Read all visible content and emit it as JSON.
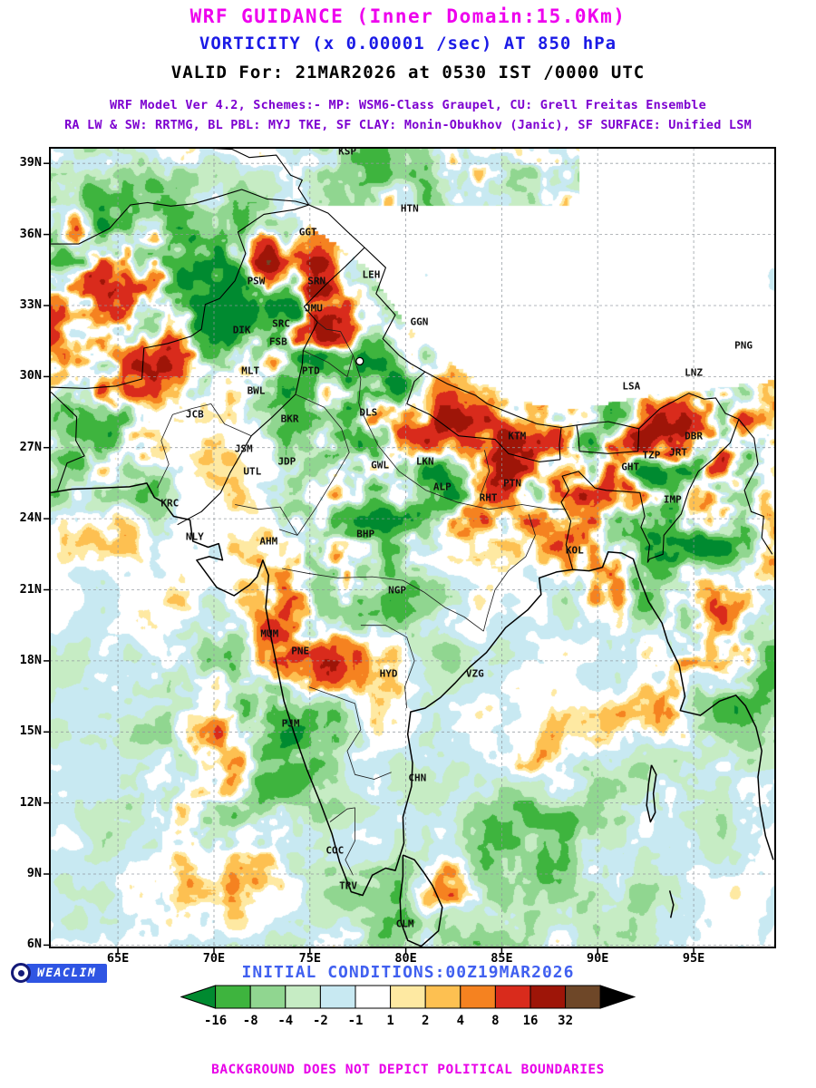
{
  "header": {
    "line1": "WRF GUIDANCE (Inner Domain:15.0Km)",
    "line2": "VORTICITY (x 0.00001 /sec) AT 850 hPa",
    "line3": "VALID For: 21MAR2026 at 0530 IST /0000 UTC",
    "line4": "WRF Model Ver 4.2, Schemes:- MP: WSM6-Class Graupel, CU: Grell Freitas Ensemble",
    "line5": "RA LW & SW: RRTMG, BL PBL: MYJ TKE, SF CLAY: Monin-Obukhov (Janic), SF SURFACE: Unified LSM"
  },
  "palette": {
    "title_magenta": "#ee00ee",
    "subtitle_blue": "#1a1ae6",
    "scheme_purple": "#7d00d0",
    "init_blue": "#4060f0",
    "disclaimer_magenta": "#e800e8",
    "badge_blue": "#2f55e3"
  },
  "map": {
    "lat_labels": [
      "39N",
      "36N",
      "33N",
      "30N",
      "27N",
      "24N",
      "21N",
      "18N",
      "15N",
      "12N",
      "9N",
      "6N"
    ],
    "lon_labels": [
      "65E",
      "70E",
      "75E",
      "80E",
      "85E",
      "90E",
      "95E"
    ],
    "stations": [
      {
        "code": "KSP",
        "lon": 76.95,
        "lat": 39.5
      },
      {
        "code": "HTN",
        "lon": 80.2,
        "lat": 37.1
      },
      {
        "code": "GGT",
        "lon": 74.9,
        "lat": 36.1
      },
      {
        "code": "LEH",
        "lon": 78.2,
        "lat": 34.3
      },
      {
        "code": "SRN",
        "lon": 75.35,
        "lat": 34.05
      },
      {
        "code": "PSW",
        "lon": 72.2,
        "lat": 34.05
      },
      {
        "code": "JMU",
        "lon": 75.2,
        "lat": 32.9
      },
      {
        "code": "SRC",
        "lon": 73.5,
        "lat": 32.25
      },
      {
        "code": "GGN",
        "lon": 80.7,
        "lat": 32.3
      },
      {
        "code": "DIK",
        "lon": 71.45,
        "lat": 31.95
      },
      {
        "code": "FSB",
        "lon": 73.35,
        "lat": 31.45
      },
      {
        "code": "PNG",
        "lon": 97.6,
        "lat": 31.3
      },
      {
        "code": "MLT",
        "lon": 71.9,
        "lat": 30.25
      },
      {
        "code": "PTD",
        "lon": 75.05,
        "lat": 30.25
      },
      {
        "code": "LNZ",
        "lon": 95.0,
        "lat": 30.15
      },
      {
        "code": "LSA",
        "lon": 91.75,
        "lat": 29.6
      },
      {
        "code": "BWL",
        "lon": 72.2,
        "lat": 29.4
      },
      {
        "code": "JCB",
        "lon": 69.0,
        "lat": 28.4
      },
      {
        "code": "DLS",
        "lon": 78.05,
        "lat": 28.5
      },
      {
        "code": "BKR",
        "lon": 73.95,
        "lat": 28.2
      },
      {
        "code": "KTM",
        "lon": 85.8,
        "lat": 27.5
      },
      {
        "code": "JSM",
        "lon": 71.55,
        "lat": 26.95
      },
      {
        "code": "JDP",
        "lon": 73.8,
        "lat": 26.4
      },
      {
        "code": "UTL",
        "lon": 72.0,
        "lat": 26.0
      },
      {
        "code": "GWL",
        "lon": 78.65,
        "lat": 26.25
      },
      {
        "code": "LKN",
        "lon": 81.0,
        "lat": 26.4
      },
      {
        "code": "ALP",
        "lon": 81.9,
        "lat": 25.35
      },
      {
        "code": "PTN",
        "lon": 85.55,
        "lat": 25.5
      },
      {
        "code": "RHT",
        "lon": 84.3,
        "lat": 24.9
      },
      {
        "code": "KRC",
        "lon": 67.7,
        "lat": 24.65
      },
      {
        "code": "NLY",
        "lon": 69.0,
        "lat": 23.25
      },
      {
        "code": "AHM",
        "lon": 72.85,
        "lat": 23.05
      },
      {
        "code": "BHP",
        "lon": 77.9,
        "lat": 23.35
      },
      {
        "code": "KOL",
        "lon": 88.8,
        "lat": 22.65
      },
      {
        "code": "GHT",
        "lon": 91.7,
        "lat": 26.2
      },
      {
        "code": "TZP",
        "lon": 92.8,
        "lat": 26.7
      },
      {
        "code": "JRT",
        "lon": 94.2,
        "lat": 26.8
      },
      {
        "code": "DBR",
        "lon": 95.0,
        "lat": 27.5
      },
      {
        "code": "IMP",
        "lon": 93.9,
        "lat": 24.8
      },
      {
        "code": "NGP",
        "lon": 79.55,
        "lat": 21.0
      },
      {
        "code": "MUM",
        "lon": 72.9,
        "lat": 19.15
      },
      {
        "code": "PNE",
        "lon": 74.5,
        "lat": 18.4
      },
      {
        "code": "HYD",
        "lon": 79.1,
        "lat": 17.45
      },
      {
        "code": "VZG",
        "lon": 83.6,
        "lat": 17.45
      },
      {
        "code": "PJM",
        "lon": 74.0,
        "lat": 15.35
      },
      {
        "code": "CHN",
        "lon": 80.6,
        "lat": 13.05
      },
      {
        "code": "COC",
        "lon": 76.3,
        "lat": 10.0
      },
      {
        "code": "TRV",
        "lon": 77.0,
        "lat": 8.5
      },
      {
        "code": "CLM",
        "lon": 79.95,
        "lat": 6.9
      }
    ],
    "markers": [
      {
        "lon": 77.6,
        "lat": 30.65
      }
    ]
  },
  "footer": {
    "brand": "WEACLIM",
    "initial_conditions": "INITIAL CONDITIONS:00Z19MAR2026",
    "disclaimer": "BACKGROUND DOES NOT DEPICT POLITICAL BOUNDARIES"
  },
  "chart_data": {
    "type": "heatmap",
    "variable": "VORTICITY (x 0.00001 /sec) AT 850 hPa",
    "model": "WRF GUIDANCE (Inner Domain:15.0Km)",
    "valid": "21MAR2026 at 0530 IST /0000 UTC",
    "initial": "00Z19MAR2026",
    "lon_range": [
      61.45,
      99.25
    ],
    "lat_range": [
      5.9,
      39.66
    ],
    "lat_ticks": [
      6,
      9,
      12,
      15,
      18,
      21,
      24,
      27,
      30,
      33,
      36,
      39
    ],
    "lon_ticks": [
      65,
      70,
      75,
      80,
      85,
      90,
      95
    ],
    "colorbar": {
      "levels": [
        -16,
        -8,
        -4,
        -2,
        -1,
        1,
        2,
        4,
        8,
        16,
        32
      ],
      "labels": [
        "-16",
        "-8",
        "-4",
        "-2",
        "-1",
        "1",
        "2",
        "4",
        "8",
        "16",
        "32"
      ],
      "colors": [
        "#008a30",
        "#3eb43e",
        "#90d690",
        "#c6ecc4",
        "#c8e9f2",
        "#ffffff",
        "#fee9a2",
        "#fdc051",
        "#f58220",
        "#d92b1c",
        "#9e1508",
        "#6e4728",
        "#000000"
      ]
    }
  }
}
